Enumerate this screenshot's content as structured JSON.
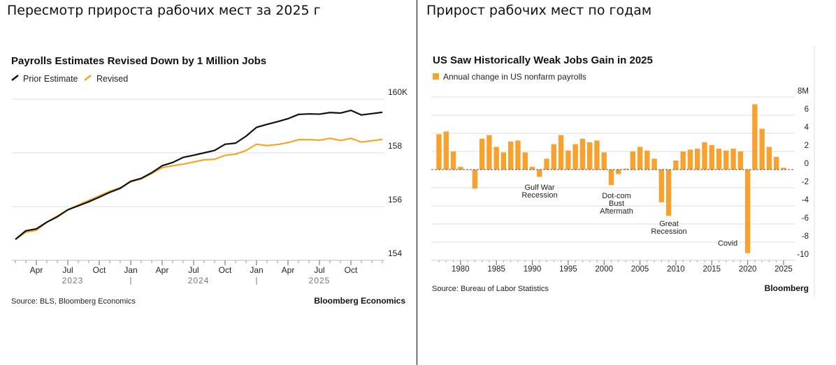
{
  "panels": {
    "left_header": "Пересмотр прироста рабочих мест за 2025 г",
    "right_header": "Прирост рабочих мест по годам"
  },
  "colors": {
    "prior": "#111111",
    "revised": "#f5a623",
    "bar": "#f7a12f",
    "grid": "#dddddd"
  },
  "chart_data": [
    {
      "type": "line",
      "title": "Payrolls Estimates Revised Down by 1 Million Jobs",
      "legend_placement": "top-left",
      "grid": true,
      "ylim": [
        154,
        160
      ],
      "y_ticks": [
        "160K",
        "158",
        "156",
        "154"
      ],
      "y_tick_values": [
        160,
        158,
        156,
        154
      ],
      "x_tick_labels": [
        "Apr",
        "Jul",
        "Oct",
        "Jan",
        "Apr",
        "Jul",
        "Oct",
        "Jan",
        "Apr",
        "Jul",
        "Oct"
      ],
      "x_tick_months": [
        "2023-04",
        "2023-07",
        "2023-10",
        "2024-01",
        "2024-04",
        "2024-07",
        "2024-10",
        "2025-01",
        "2025-04",
        "2025-07",
        "2025-10"
      ],
      "year_labels": [
        "2023",
        "2024",
        "2025"
      ],
      "x": [
        "2023-02",
        "2023-03",
        "2023-04",
        "2023-05",
        "2023-06",
        "2023-07",
        "2023-08",
        "2023-09",
        "2023-10",
        "2023-11",
        "2023-12",
        "2024-01",
        "2024-02",
        "2024-03",
        "2024-04",
        "2024-05",
        "2024-06",
        "2024-07",
        "2024-08",
        "2024-09",
        "2024-10",
        "2024-11",
        "2024-12",
        "2025-01",
        "2025-02",
        "2025-03",
        "2025-04",
        "2025-05",
        "2025-06",
        "2025-07",
        "2025-08",
        "2025-09",
        "2025-10",
        "2025-11",
        "2025-12",
        "2026-01"
      ],
      "series": [
        {
          "name": "Prior Estimate",
          "values": [
            154.78,
            155.1,
            155.17,
            155.42,
            155.62,
            155.88,
            156.03,
            156.18,
            156.35,
            156.53,
            156.68,
            156.94,
            157.05,
            157.26,
            157.52,
            157.64,
            157.83,
            157.91,
            158.0,
            158.09,
            158.32,
            158.36,
            158.62,
            158.95,
            159.06,
            159.16,
            159.27,
            159.43,
            159.45,
            159.44,
            159.5,
            159.48,
            159.58,
            159.41,
            159.46,
            159.51
          ]
        },
        {
          "name": "Revised",
          "values": [
            154.78,
            155.05,
            155.12,
            155.42,
            155.65,
            155.88,
            156.06,
            156.23,
            156.4,
            156.57,
            156.7,
            156.92,
            157.03,
            157.23,
            157.45,
            157.52,
            157.58,
            157.66,
            157.74,
            157.76,
            157.91,
            157.95,
            158.09,
            158.32,
            158.27,
            158.31,
            158.38,
            158.49,
            158.49,
            158.47,
            158.54,
            158.46,
            158.54,
            158.4,
            158.45,
            158.5
          ]
        }
      ],
      "source": "Source: BLS, Bloomberg Economics",
      "brand": "Bloomberg Economics"
    },
    {
      "type": "bar",
      "title": "US Saw Historically Weak Jobs Gain in 2025",
      "legend_placement": "top-left",
      "grid": true,
      "ylim": [
        -10,
        8
      ],
      "y_ticks": [
        "8M",
        "6",
        "4",
        "2",
        "0",
        "-2",
        "-4",
        "-6",
        "-8",
        "-10"
      ],
      "y_tick_values": [
        8,
        6,
        4,
        2,
        0,
        -2,
        -4,
        -6,
        -8,
        -10
      ],
      "x_tick_labels": [
        "1980",
        "1985",
        "1990",
        "1995",
        "2000",
        "2005",
        "2010",
        "2015",
        "2020",
        "2025"
      ],
      "series": [
        {
          "name": "Annual change in US nonfarm payrolls",
          "x": [
            1977,
            1978,
            1979,
            1980,
            1981,
            1982,
            1983,
            1984,
            1985,
            1986,
            1987,
            1988,
            1989,
            1990,
            1991,
            1992,
            1993,
            1994,
            1995,
            1996,
            1997,
            1998,
            1999,
            2000,
            2001,
            2002,
            2003,
            2004,
            2005,
            2006,
            2007,
            2008,
            2009,
            2010,
            2011,
            2012,
            2013,
            2014,
            2015,
            2016,
            2017,
            2018,
            2019,
            2020,
            2021,
            2022,
            2023,
            2024,
            2025
          ],
          "values": [
            3.9,
            4.2,
            2.0,
            0.3,
            0.0,
            -2.1,
            3.4,
            3.8,
            2.5,
            1.9,
            3.1,
            3.2,
            1.9,
            0.3,
            -0.8,
            1.2,
            2.8,
            3.8,
            2.1,
            2.8,
            3.4,
            3.0,
            3.2,
            1.9,
            -1.7,
            -0.5,
            0.1,
            2.0,
            2.5,
            2.1,
            1.2,
            -3.6,
            -5.1,
            1.0,
            2.0,
            2.2,
            2.3,
            3.0,
            2.7,
            2.3,
            2.1,
            2.3,
            2.0,
            -9.2,
            7.2,
            4.5,
            2.5,
            1.4,
            0.2
          ]
        }
      ],
      "annotations": [
        {
          "lines": [
            "Gulf War",
            "Recession"
          ],
          "year": 1991
        },
        {
          "lines": [
            "Dot-com",
            "Bust",
            "Aftermath"
          ],
          "year": 2002
        },
        {
          "lines": [
            "Great",
            "Recession"
          ],
          "year": 2009
        },
        {
          "lines": [
            "Covid"
          ],
          "year": 2018
        }
      ],
      "source": "Source: Bureau of Labor Statistics",
      "brand": "Bloomberg"
    }
  ]
}
